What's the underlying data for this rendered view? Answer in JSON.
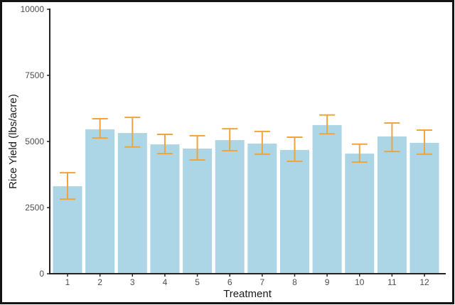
{
  "figure": {
    "background_color": "#ffffff",
    "frame_border_color": "#141414"
  },
  "chart_data": {
    "type": "bar",
    "title": "",
    "xlabel": "Treatment",
    "ylabel": "Rice Yield (lbs/acre)",
    "categories": [
      "1",
      "2",
      "3",
      "4",
      "5",
      "6",
      "7",
      "8",
      "9",
      "10",
      "11",
      "12"
    ],
    "values": [
      3310,
      5460,
      5320,
      4890,
      4730,
      5050,
      4920,
      4680,
      5620,
      4540,
      5190,
      4950
    ],
    "error_high": [
      3820,
      5860,
      5910,
      5270,
      5220,
      5480,
      5380,
      5160,
      6000,
      4900,
      5700,
      5430
    ],
    "error_low": [
      2820,
      5130,
      4790,
      4540,
      4300,
      4650,
      4520,
      4250,
      5290,
      4220,
      4620,
      4520
    ],
    "ylim": [
      0,
      10000
    ],
    "yticks": [
      0,
      2500,
      5000,
      7500,
      10000
    ],
    "bar_color": "#ACD6E6",
    "error_bar_color": "#EFA53B",
    "axis_line_color": "#222222",
    "tick_label_color": "#4d4d4d",
    "axis_title_color": "#1a1a1a",
    "grid": false,
    "legend": "none",
    "error_bars": true
  }
}
